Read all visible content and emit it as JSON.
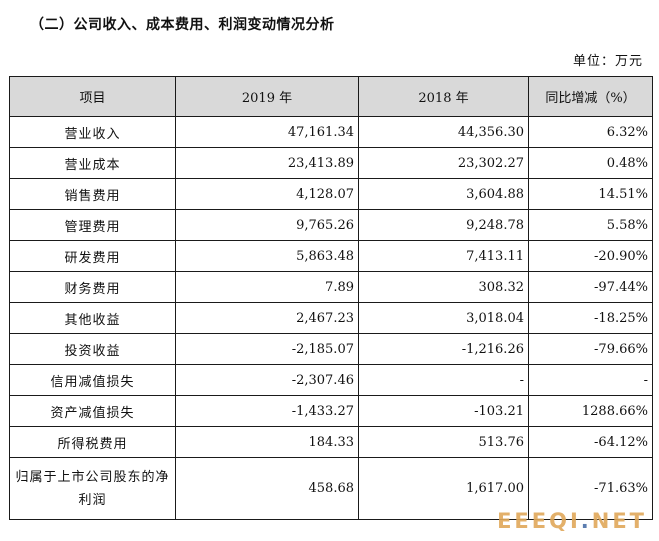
{
  "title": "（二）公司收入、成本费用、利润变动情况分析",
  "unit": "单位：万元",
  "table": {
    "headers": [
      "项目",
      "2019 年",
      "2018 年",
      "同比增减（%）"
    ],
    "rows": [
      {
        "label": "营业收入",
        "v2019": "47,161.34",
        "v2018": "44,356.30",
        "change": "6.32%"
      },
      {
        "label": "营业成本",
        "v2019": "23,413.89",
        "v2018": "23,302.27",
        "change": "0.48%"
      },
      {
        "label": "销售费用",
        "v2019": "4,128.07",
        "v2018": "3,604.88",
        "change": "14.51%"
      },
      {
        "label": "管理费用",
        "v2019": "9,765.26",
        "v2018": "9,248.78",
        "change": "5.58%"
      },
      {
        "label": "研发费用",
        "v2019": "5,863.48",
        "v2018": "7,413.11",
        "change": "-20.90%"
      },
      {
        "label": "财务费用",
        "v2019": "7.89",
        "v2018": "308.32",
        "change": "-97.44%"
      },
      {
        "label": "其他收益",
        "v2019": "2,467.23",
        "v2018": "3,018.04",
        "change": "-18.25%"
      },
      {
        "label": "投资收益",
        "v2019": "-2,185.07",
        "v2018": "-1,216.26",
        "change": "-79.66%"
      },
      {
        "label": "信用减值损失",
        "v2019": "-2,307.46",
        "v2018": "-",
        "change": "-"
      },
      {
        "label": "资产减值损失",
        "v2019": "-1,433.27",
        "v2018": "-103.21",
        "change": "1288.66%"
      },
      {
        "label": "所得税费用",
        "v2019": "184.33",
        "v2018": "513.76",
        "change": "-64.12%"
      },
      {
        "label": "归属于上市公司股东的净利润",
        "v2019": "458.68",
        "v2018": "1,617.00",
        "change": "-71.63%"
      }
    ]
  },
  "watermark": {
    "text": "EEEQI",
    "dot": ".",
    "suffix": "NET"
  }
}
